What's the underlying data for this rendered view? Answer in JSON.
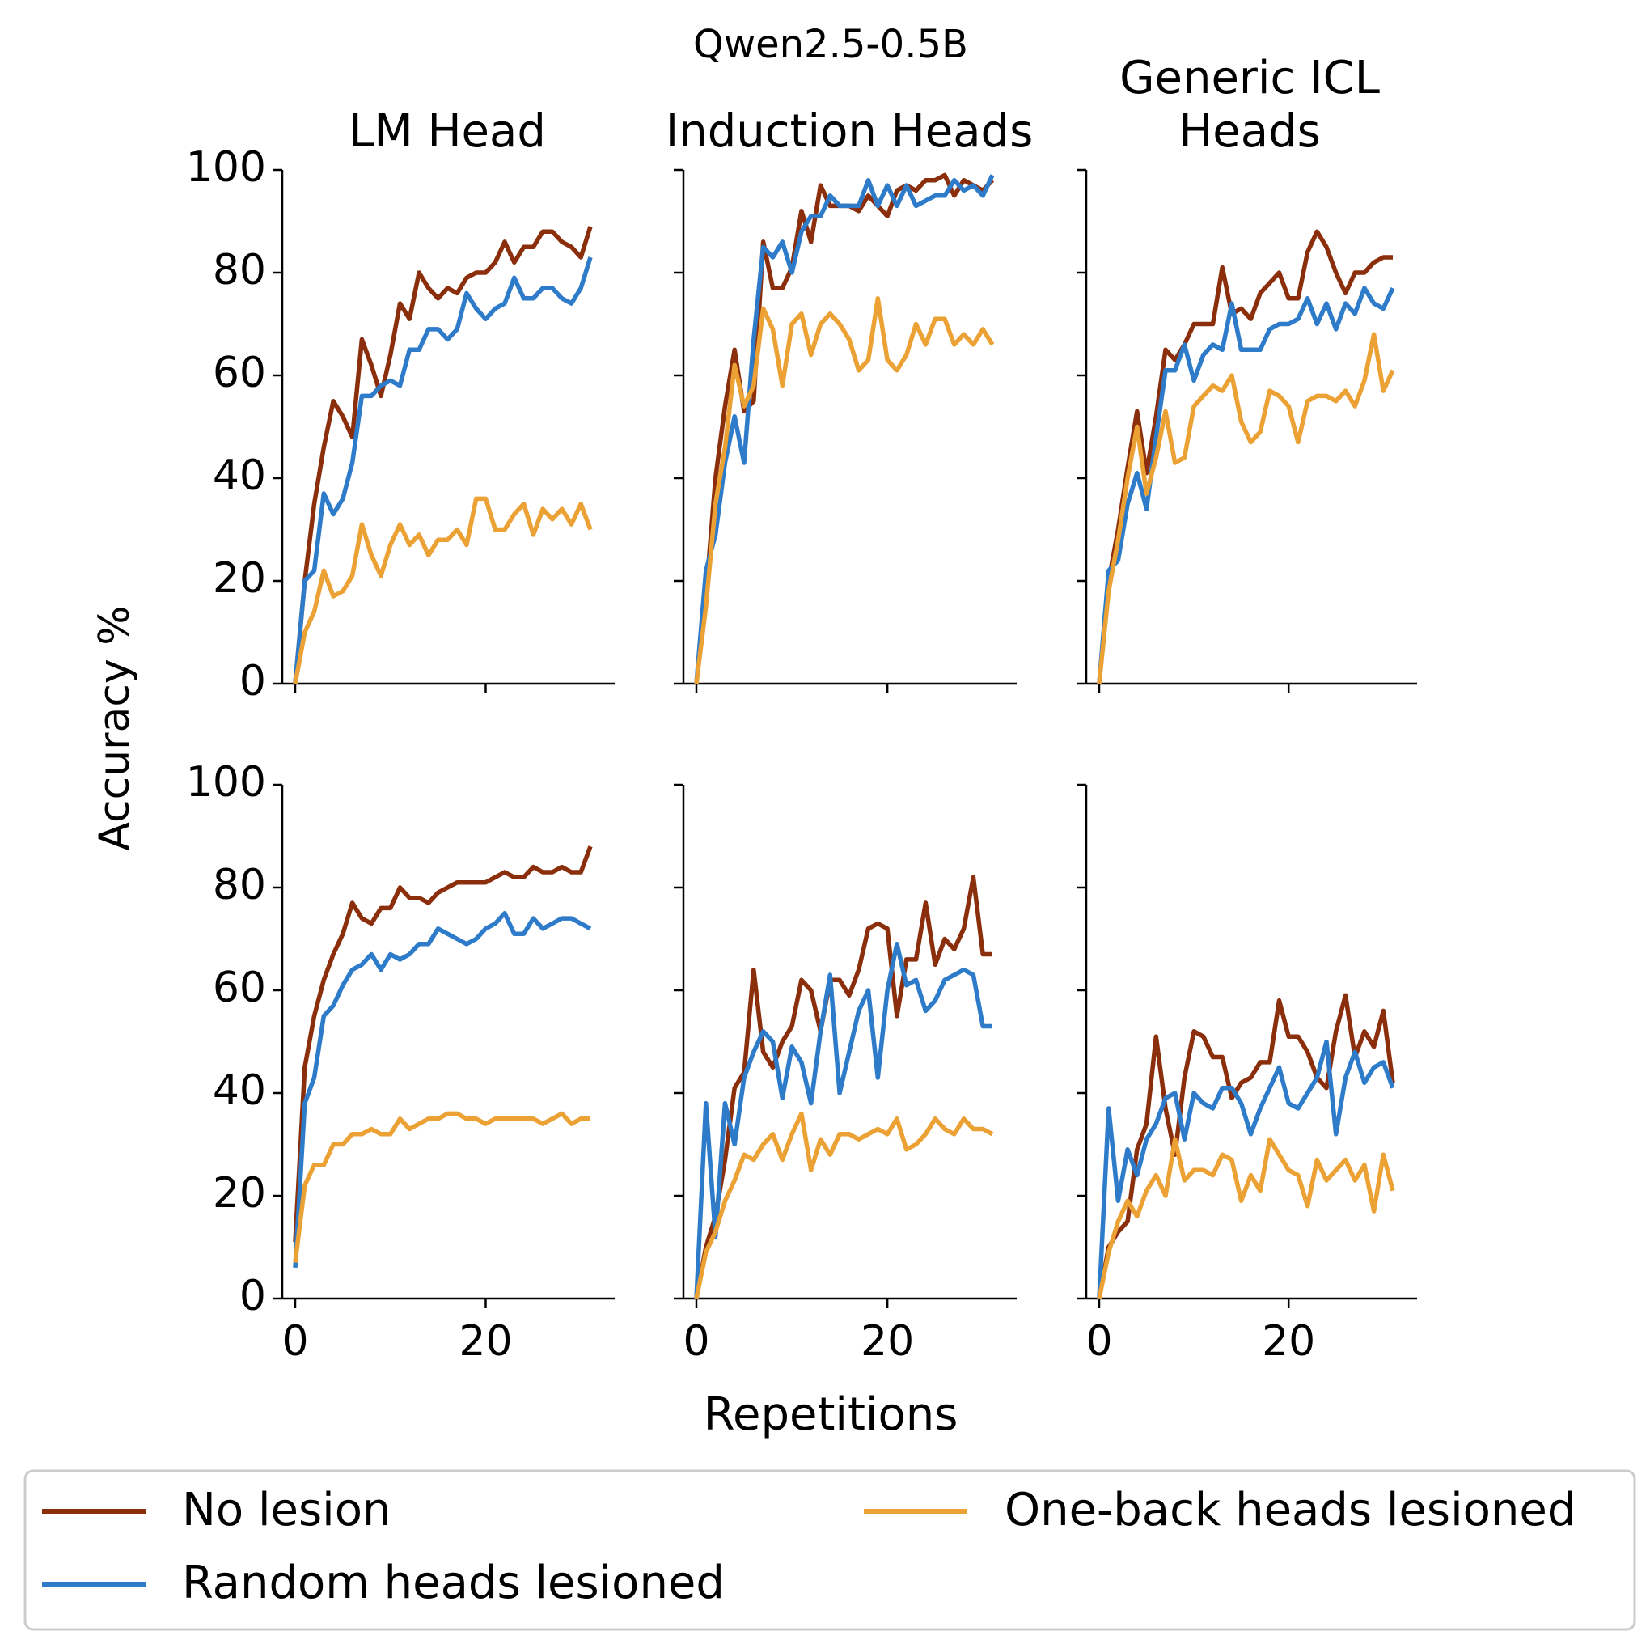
{
  "figure": {
    "title": "Qwen2.5-0.5B",
    "ylabel": "Accuracy %",
    "xlabel": "Repetitions",
    "column_titles": [
      "LM Head",
      "Induction Heads",
      "Generic ICL\nHeads"
    ]
  },
  "legend": {
    "placement": "bottom",
    "entries": [
      {
        "name": "No lesion",
        "color": "#8B2E0B"
      },
      {
        "name": "Random heads lesioned",
        "color": "#2D7BC9"
      },
      {
        "name": "One-back heads lesioned",
        "color": "#EBA134"
      }
    ]
  },
  "chart_data": [
    {
      "type": "line",
      "panel": "top-lm-head",
      "title": "LM Head",
      "xlim": [
        0,
        31
      ],
      "ylim": [
        0,
        100
      ],
      "xticks": [
        0,
        20
      ],
      "yticks": [
        0,
        20,
        40,
        60,
        80,
        100
      ],
      "series": [
        {
          "name": "No lesion",
          "values": [
            0,
            20,
            35,
            46,
            55,
            52,
            48,
            67,
            62,
            56,
            64,
            74,
            71,
            80,
            77,
            75,
            77,
            76,
            79,
            80,
            80,
            82,
            86,
            82,
            85,
            85,
            88,
            88,
            86,
            85,
            83,
            89
          ]
        },
        {
          "name": "Random heads lesioned",
          "values": [
            0,
            20,
            22,
            37,
            33,
            36,
            43,
            56,
            56,
            58,
            59,
            58,
            65,
            65,
            69,
            69,
            67,
            69,
            76,
            73,
            71,
            73,
            74,
            79,
            75,
            75,
            77,
            77,
            75,
            74,
            77,
            83
          ]
        },
        {
          "name": "One-back heads lesioned",
          "values": [
            0,
            10,
            14,
            22,
            17,
            18,
            21,
            31,
            25,
            21,
            27,
            31,
            27,
            29,
            25,
            28,
            28,
            30,
            27,
            36,
            36,
            30,
            30,
            33,
            35,
            29,
            34,
            32,
            34,
            31,
            35,
            30
          ]
        }
      ]
    },
    {
      "type": "line",
      "panel": "top-induction-heads",
      "title": "Induction Heads",
      "xlim": [
        0,
        31
      ],
      "ylim": [
        0,
        100
      ],
      "xticks": [
        0,
        20
      ],
      "yticks": [
        0,
        20,
        40,
        60,
        80,
        100
      ],
      "series": [
        {
          "name": "No lesion",
          "values": [
            0,
            17,
            40,
            54,
            65,
            53,
            55,
            86,
            77,
            77,
            81,
            92,
            86,
            97,
            93,
            93,
            93,
            92,
            95,
            93,
            91,
            96,
            97,
            96,
            98,
            98,
            99,
            95,
            98,
            97,
            96,
            98
          ]
        },
        {
          "name": "Random heads lesioned",
          "values": [
            0,
            22,
            29,
            43,
            52,
            43,
            67,
            85,
            83,
            86,
            80,
            88,
            91,
            91,
            95,
            93,
            93,
            93,
            98,
            93,
            97,
            93,
            97,
            93,
            94,
            95,
            95,
            98,
            96,
            97,
            95,
            99
          ]
        },
        {
          "name": "One-back heads lesioned",
          "values": [
            0,
            15,
            35,
            46,
            62,
            54,
            58,
            73,
            69,
            58,
            70,
            72,
            64,
            70,
            72,
            70,
            67,
            61,
            63,
            75,
            63,
            61,
            64,
            70,
            66,
            71,
            71,
            66,
            68,
            66,
            69,
            66
          ]
        }
      ]
    },
    {
      "type": "line",
      "panel": "top-generic-icl-heads",
      "title": "Generic ICL\nHeads",
      "xlim": [
        0,
        31
      ],
      "ylim": [
        0,
        100
      ],
      "xticks": [
        0,
        20
      ],
      "yticks": [
        0,
        20,
        40,
        60,
        80,
        100
      ],
      "series": [
        {
          "name": "No lesion",
          "values": [
            0,
            20,
            30,
            42,
            53,
            41,
            52,
            65,
            63,
            66,
            70,
            70,
            70,
            81,
            72,
            73,
            71,
            76,
            78,
            80,
            75,
            75,
            84,
            88,
            85,
            80,
            76,
            80,
            80,
            82,
            83,
            83
          ]
        },
        {
          "name": "Random heads lesioned",
          "values": [
            0,
            22,
            24,
            35,
            41,
            34,
            48,
            61,
            61,
            66,
            59,
            64,
            66,
            65,
            74,
            65,
            65,
            65,
            69,
            70,
            70,
            71,
            75,
            70,
            74,
            69,
            74,
            72,
            77,
            74,
            73,
            77
          ]
        },
        {
          "name": "One-back heads lesioned",
          "values": [
            0,
            18,
            28,
            40,
            50,
            37,
            44,
            53,
            43,
            44,
            54,
            56,
            58,
            57,
            60,
            51,
            47,
            49,
            57,
            56,
            54,
            47,
            55,
            56,
            56,
            55,
            57,
            54,
            59,
            68,
            57,
            61
          ]
        }
      ]
    },
    {
      "type": "line",
      "panel": "bottom-lm-head",
      "xlim": [
        0,
        31
      ],
      "ylim": [
        0,
        100
      ],
      "xticks": [
        0,
        20
      ],
      "yticks": [
        0,
        20,
        40,
        60,
        80,
        100
      ],
      "series": [
        {
          "name": "No lesion",
          "values": [
            11,
            45,
            55,
            62,
            67,
            71,
            77,
            74,
            73,
            76,
            76,
            80,
            78,
            78,
            77,
            79,
            80,
            81,
            81,
            81,
            81,
            82,
            83,
            82,
            82,
            84,
            83,
            83,
            84,
            83,
            83,
            88
          ]
        },
        {
          "name": "Random heads lesioned",
          "values": [
            6,
            38,
            43,
            55,
            57,
            61,
            64,
            65,
            67,
            64,
            67,
            66,
            67,
            69,
            69,
            72,
            71,
            70,
            69,
            70,
            72,
            73,
            75,
            71,
            71,
            74,
            72,
            73,
            74,
            74,
            73,
            72
          ]
        },
        {
          "name": "One-back heads lesioned",
          "values": [
            7,
            22,
            26,
            26,
            30,
            30,
            32,
            32,
            33,
            32,
            32,
            35,
            33,
            34,
            35,
            35,
            36,
            36,
            35,
            35,
            34,
            35,
            35,
            35,
            35,
            35,
            34,
            35,
            36,
            34,
            35,
            35
          ]
        }
      ]
    },
    {
      "type": "line",
      "panel": "bottom-induction-heads",
      "xlim": [
        0,
        31
      ],
      "ylim": [
        0,
        100
      ],
      "xticks": [
        0,
        20
      ],
      "yticks": [
        0,
        20,
        40,
        60,
        80,
        100
      ],
      "series": [
        {
          "name": "No lesion",
          "values": [
            0,
            10,
            16,
            27,
            41,
            44,
            64,
            48,
            45,
            50,
            53,
            62,
            60,
            52,
            62,
            62,
            59,
            64,
            72,
            73,
            72,
            55,
            66,
            66,
            77,
            65,
            70,
            68,
            72,
            82,
            67,
            67
          ]
        },
        {
          "name": "Random heads lesioned",
          "values": [
            0,
            38,
            12,
            38,
            30,
            43,
            48,
            52,
            50,
            39,
            49,
            46,
            38,
            52,
            63,
            40,
            48,
            56,
            60,
            43,
            60,
            69,
            61,
            62,
            56,
            58,
            62,
            63,
            64,
            63,
            53,
            53
          ]
        },
        {
          "name": "One-back heads lesioned",
          "values": [
            0,
            9,
            13,
            19,
            23,
            28,
            27,
            30,
            32,
            27,
            32,
            36,
            25,
            31,
            28,
            32,
            32,
            31,
            32,
            33,
            32,
            35,
            29,
            30,
            32,
            35,
            33,
            32,
            35,
            33,
            33,
            32
          ]
        }
      ]
    },
    {
      "type": "line",
      "panel": "bottom-generic-icl-heads",
      "xlim": [
        0,
        31
      ],
      "ylim": [
        0,
        100
      ],
      "xticks": [
        0,
        20
      ],
      "yticks": [
        0,
        20,
        40,
        60,
        80,
        100
      ],
      "series": [
        {
          "name": "No lesion",
          "values": [
            0,
            10,
            13,
            15,
            29,
            34,
            51,
            37,
            28,
            43,
            52,
            51,
            47,
            47,
            39,
            42,
            43,
            46,
            46,
            58,
            51,
            51,
            48,
            43,
            41,
            52,
            59,
            47,
            52,
            49,
            56,
            42
          ]
        },
        {
          "name": "Random heads lesioned",
          "values": [
            0,
            37,
            19,
            29,
            24,
            31,
            34,
            39,
            40,
            31,
            40,
            38,
            37,
            41,
            41,
            38,
            32,
            37,
            41,
            45,
            38,
            37,
            40,
            43,
            50,
            32,
            43,
            48,
            42,
            45,
            46,
            41
          ]
        },
        {
          "name": "One-back heads lesioned",
          "values": [
            0,
            9,
            15,
            19,
            16,
            21,
            24,
            20,
            31,
            23,
            25,
            25,
            24,
            28,
            27,
            19,
            24,
            21,
            31,
            28,
            25,
            24,
            18,
            27,
            23,
            25,
            27,
            23,
            26,
            17,
            28,
            21
          ]
        }
      ]
    }
  ]
}
